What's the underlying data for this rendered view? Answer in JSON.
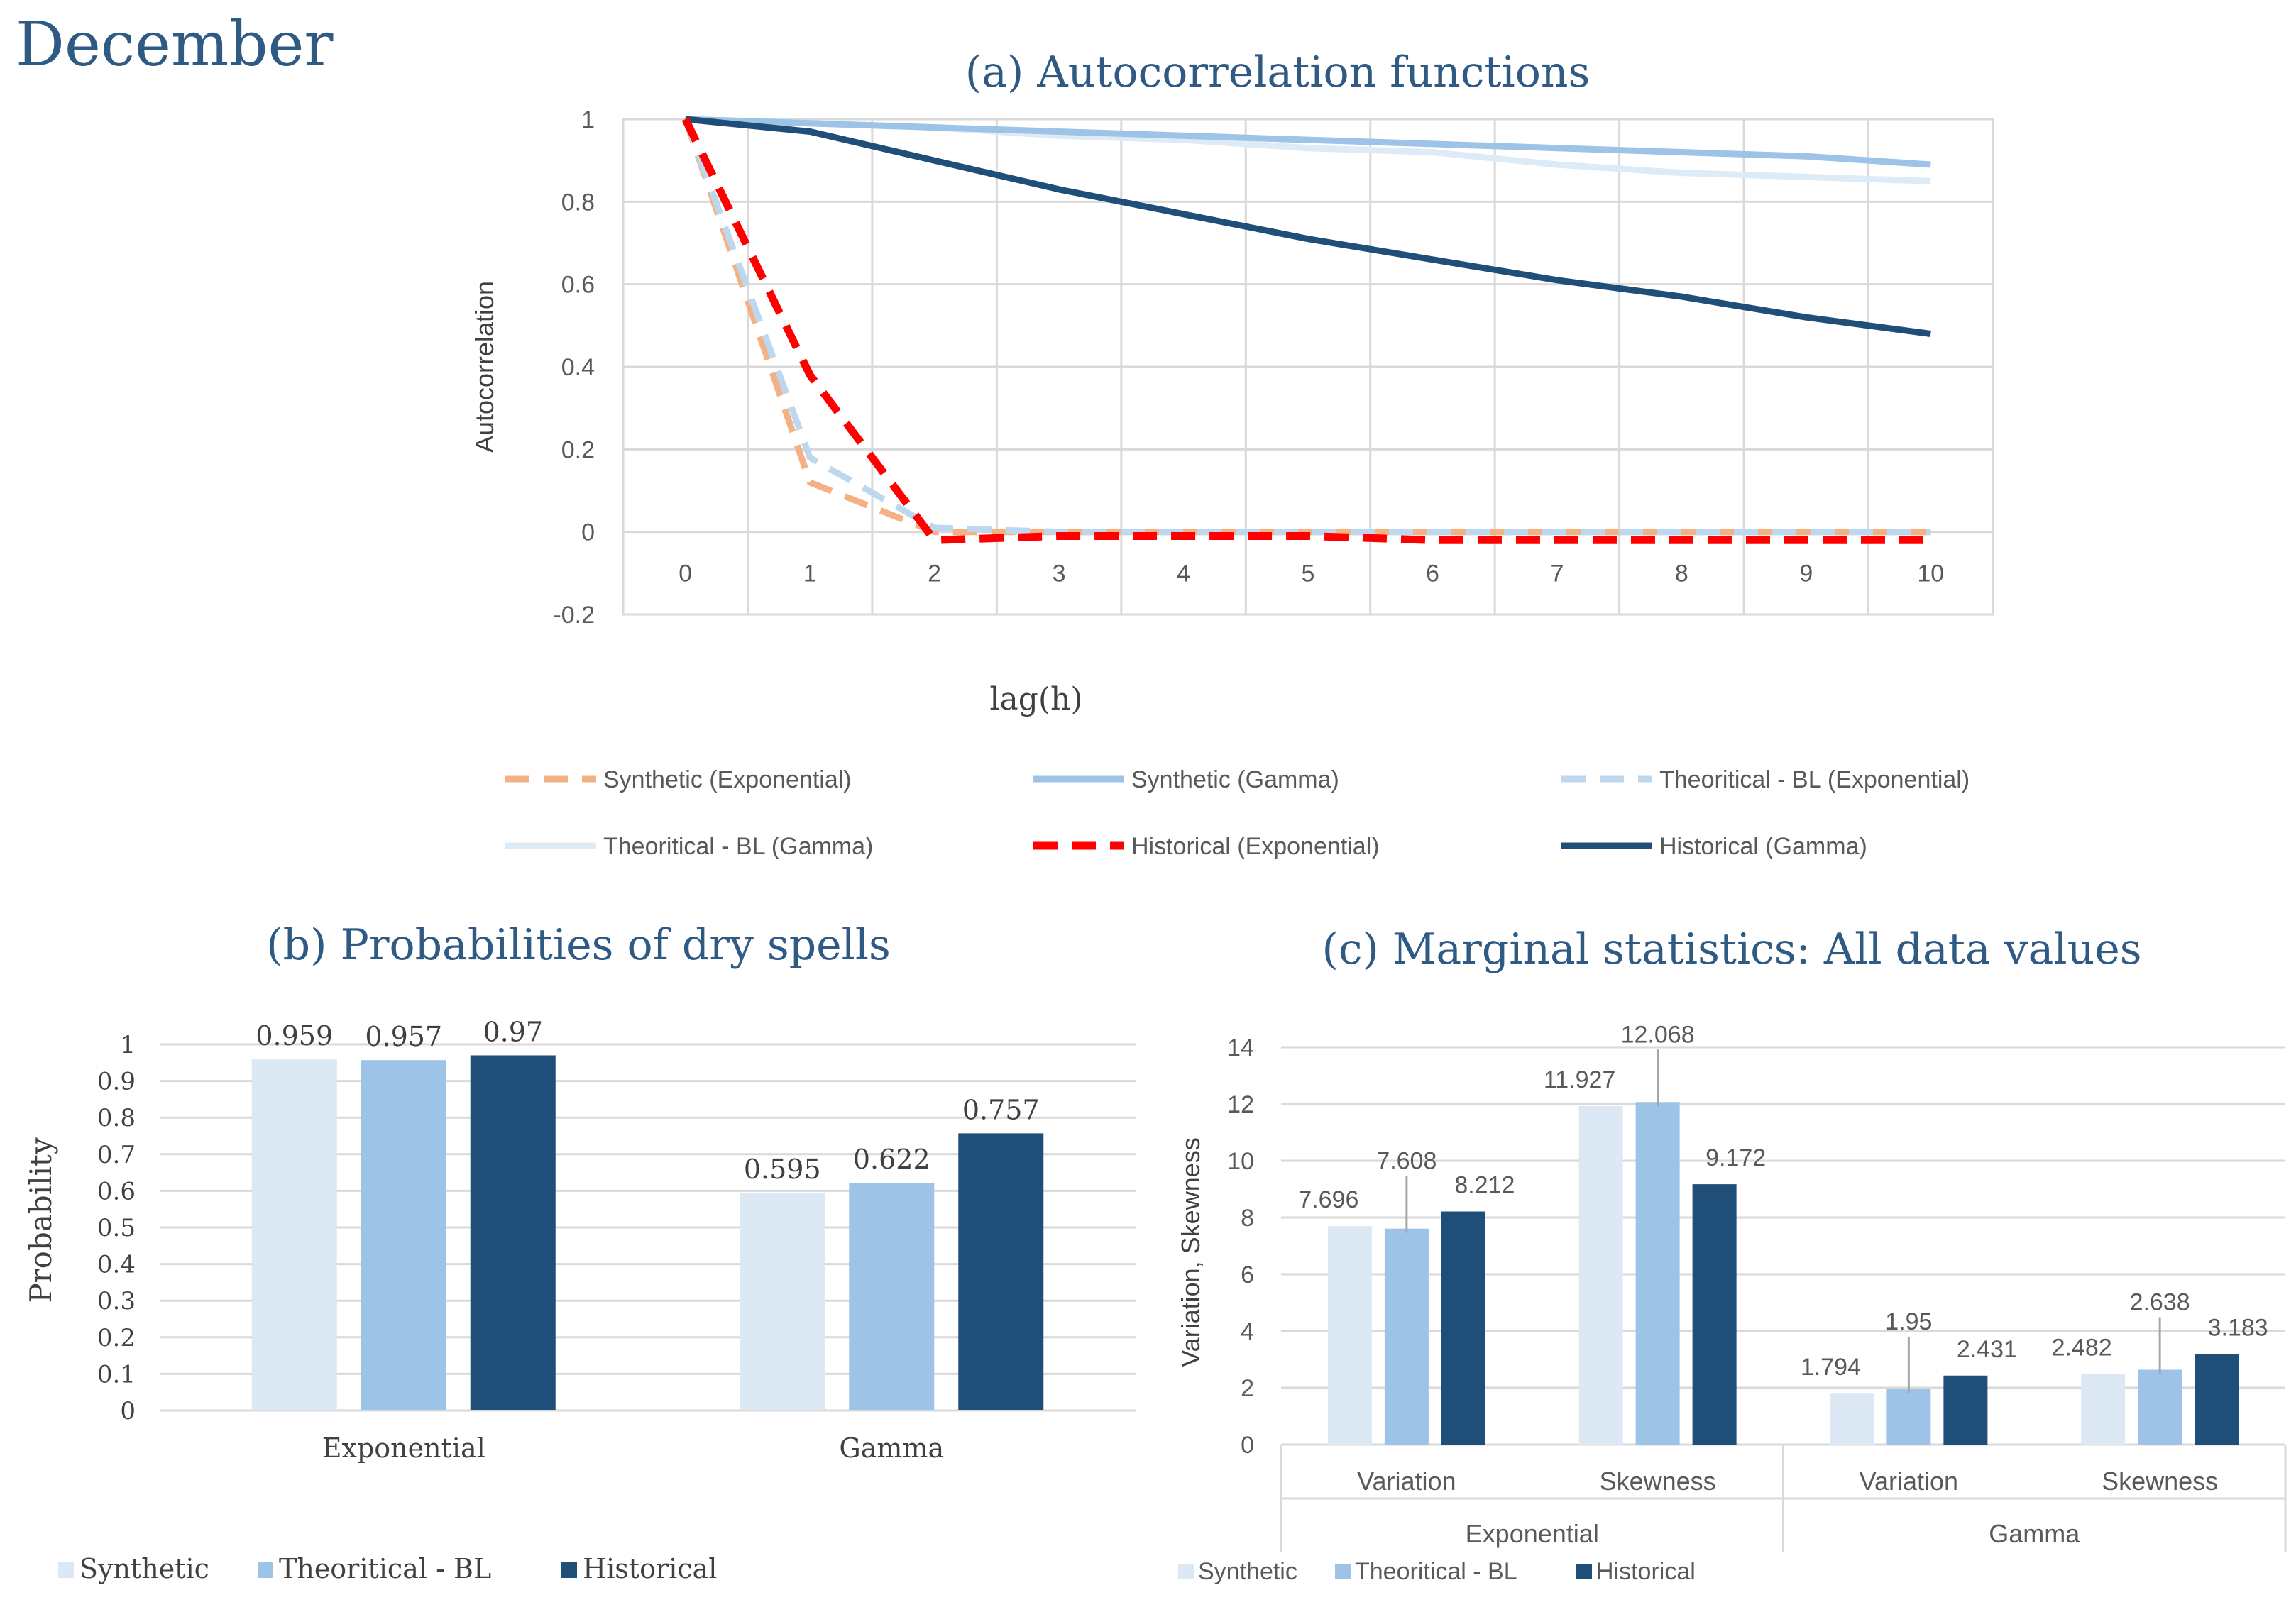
{
  "page_title": "December",
  "colors": {
    "title": "#2e5a84",
    "synthetic_exp": "#f4b183",
    "synthetic_gamma": "#9dc3e6",
    "theo_exp": "#bdd7ee",
    "theo_gamma": "#ddebf7",
    "hist_exp": "#ff0000",
    "hist_gamma": "#1f4e79",
    "bar_synthetic": "#dce9f5",
    "bar_theo": "#9dc3e6",
    "bar_hist": "#1f4e79",
    "grid": "#d9d9d9",
    "axis_text": "#595959"
  },
  "chart_data": [
    {
      "id": "a",
      "type": "line",
      "title": "(a) Autocorrelation functions",
      "xlabel": "lag(h)",
      "ylabel": "Autocorrelation",
      "x": [
        0,
        1,
        2,
        3,
        4,
        5,
        6,
        7,
        8,
        9,
        10
      ],
      "x_ticks": [
        "0",
        "1",
        "2",
        "3",
        "4",
        "5",
        "6",
        "7",
        "8",
        "9",
        "10"
      ],
      "y_ticks": [
        "1",
        "0.8",
        "0.6",
        "0.4",
        "0.2",
        "0",
        "-0.2"
      ],
      "ylim": [
        -0.2,
        1
      ],
      "legend_position": "bottom",
      "series": [
        {
          "name": "Synthetic (Exponential)",
          "dashed": true,
          "values": [
            1,
            0.12,
            0.0,
            0.0,
            0.0,
            0.0,
            0.0,
            0.0,
            0.0,
            0.0,
            0.0
          ]
        },
        {
          "name": "Synthetic (Gamma)",
          "dashed": false,
          "values": [
            1,
            0.99,
            0.98,
            0.97,
            0.96,
            0.95,
            0.94,
            0.93,
            0.92,
            0.91,
            0.89
          ]
        },
        {
          "name": "Theoritical - BL (Exponential)",
          "dashed": true,
          "values": [
            1,
            0.18,
            0.01,
            0.0,
            0.0,
            0.0,
            0.0,
            0.0,
            0.0,
            0.0,
            0.0
          ]
        },
        {
          "name": "Theoritical - BL (Gamma)",
          "dashed": false,
          "values": [
            1,
            0.99,
            0.98,
            0.96,
            0.95,
            0.93,
            0.92,
            0.89,
            0.87,
            0.86,
            0.85
          ]
        },
        {
          "name": "Historical (Exponential)",
          "dashed": true,
          "values": [
            1,
            0.38,
            -0.02,
            -0.01,
            -0.01,
            -0.01,
            -0.02,
            -0.02,
            -0.02,
            -0.02,
            -0.02
          ]
        },
        {
          "name": "Historical (Gamma)",
          "dashed": false,
          "values": [
            1,
            0.97,
            0.9,
            0.83,
            0.77,
            0.71,
            0.66,
            0.61,
            0.57,
            0.52,
            0.48
          ]
        }
      ]
    },
    {
      "id": "b",
      "type": "bar",
      "title": "(b) Probabilities of dry spells",
      "ylabel": "Probability",
      "categories": [
        "Exponential",
        "Gamma"
      ],
      "y_ticks": [
        "1",
        "0.9",
        "0.8",
        "0.7",
        "0.6",
        "0.5",
        "0.4",
        "0.3",
        "0.2",
        "0.1",
        "0"
      ],
      "ylim": [
        0,
        1
      ],
      "legend_position": "bottom-left",
      "series": [
        {
          "name": "Synthetic",
          "values": [
            0.959,
            0.595
          ],
          "labels": [
            "0.959",
            "0.595"
          ]
        },
        {
          "name": "Theoritical - BL",
          "values": [
            0.957,
            0.622
          ],
          "labels": [
            "0.957",
            "0.622"
          ]
        },
        {
          "name": "Historical",
          "values": [
            0.97,
            0.757
          ],
          "labels": [
            "0.97",
            "0.757"
          ]
        }
      ]
    },
    {
      "id": "c",
      "type": "bar",
      "title": "(c) Marginal statistics: All data values",
      "ylabel": "Variation, Skewness",
      "categories": [
        "Variation",
        "Skewness",
        "Variation",
        "Skewness"
      ],
      "groups": [
        "Exponential",
        "Gamma"
      ],
      "y_ticks": [
        "14",
        "12",
        "10",
        "8",
        "6",
        "4",
        "2",
        "0"
      ],
      "ylim": [
        0,
        14
      ],
      "legend_position": "bottom-left",
      "series": [
        {
          "name": "Synthetic",
          "values": [
            7.696,
            11.927,
            1.794,
            2.482
          ],
          "labels": [
            "7.696",
            "11.927",
            "1.794",
            "2.482"
          ]
        },
        {
          "name": "Theoritical - BL",
          "values": [
            7.608,
            12.068,
            1.95,
            2.638
          ],
          "labels": [
            "7.608",
            "12.068",
            "1.95",
            "2.638"
          ]
        },
        {
          "name": "Historical",
          "values": [
            8.212,
            9.172,
            2.431,
            3.183
          ],
          "labels": [
            "8.212",
            "9.172",
            "2.431",
            "3.183"
          ]
        }
      ]
    }
  ]
}
